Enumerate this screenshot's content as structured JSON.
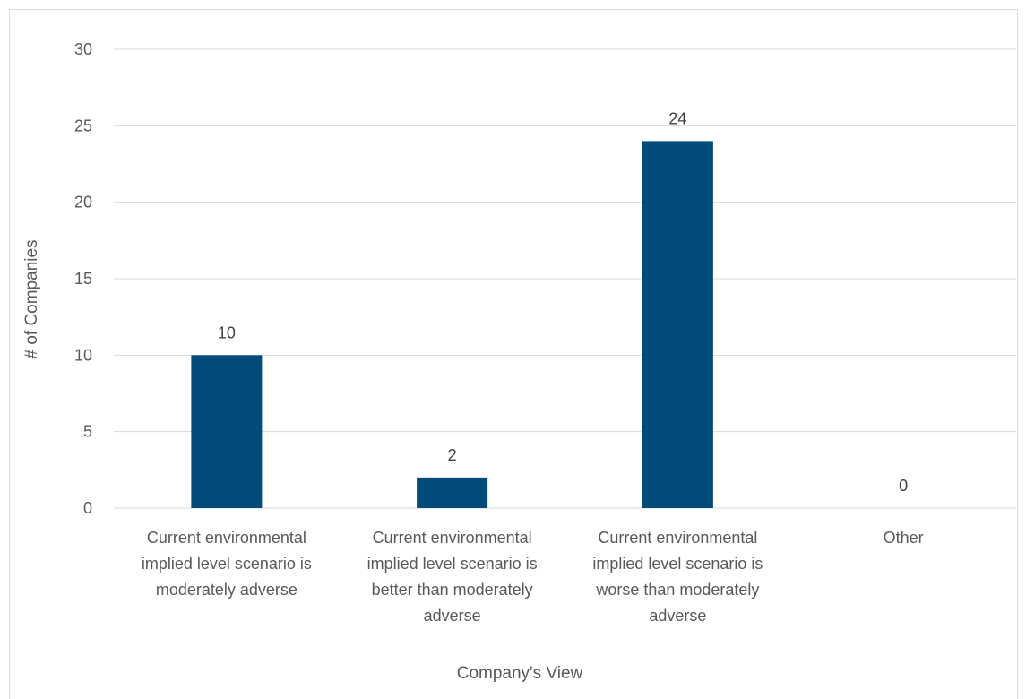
{
  "chart_data": {
    "type": "bar",
    "xlabel": "Company's View",
    "ylabel": "# of Companies",
    "ylim": [
      0,
      30
    ],
    "yticks": [
      0,
      5,
      10,
      15,
      20,
      25,
      30
    ],
    "grid": true,
    "categories": [
      [
        "Current environmental",
        "implied level scenario is",
        "moderately adverse"
      ],
      [
        "Current environmental",
        "implied level scenario is",
        "better than moderately",
        "adverse"
      ],
      [
        "Current environmental",
        "implied level scenario is",
        "worse than moderately",
        "adverse"
      ],
      [
        "Other"
      ]
    ],
    "values": [
      10,
      2,
      24,
      0
    ],
    "bar_color": "#004b7a",
    "grid_color": "#d9d9d9"
  }
}
